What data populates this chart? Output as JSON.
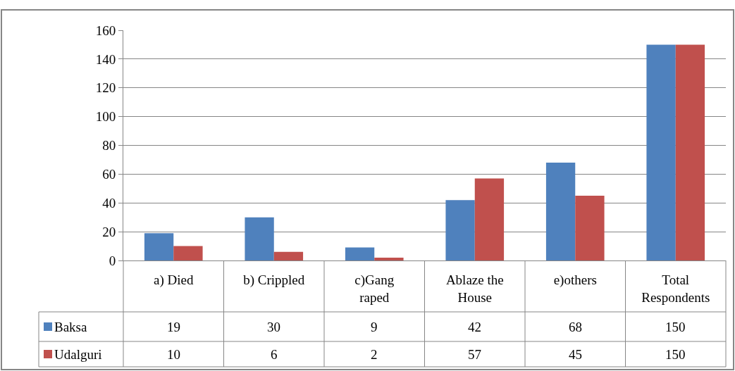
{
  "chart_data": {
    "type": "bar",
    "categories": [
      "a) Died",
      "b) Crippled",
      "c)Gang raped",
      "Ablaze the House",
      "e)others",
      "Total Respondents"
    ],
    "series": [
      {
        "name": "Baksa",
        "color": "#4f81bd",
        "values": [
          19,
          30,
          9,
          42,
          68,
          150
        ]
      },
      {
        "name": "Udalguri",
        "color": "#c0504d",
        "values": [
          10,
          6,
          2,
          57,
          45,
          150
        ]
      }
    ],
    "ylim": [
      0,
      160
    ],
    "yticks": [
      0,
      20,
      40,
      60,
      80,
      100,
      120,
      140,
      160
    ],
    "grid": "y",
    "data_labels": true,
    "legend": "bottom left"
  }
}
